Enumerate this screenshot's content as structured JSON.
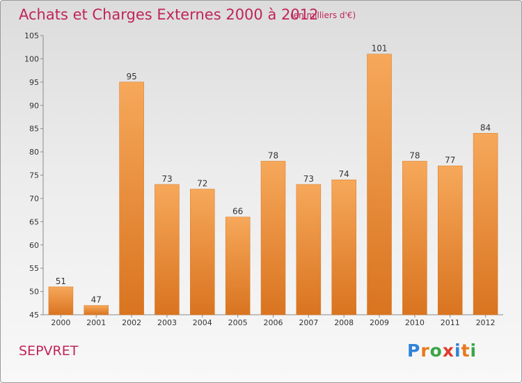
{
  "title": "Achats et Charges Externes 2000 à 2012",
  "unit_note": "(en milliers d'€)",
  "commune": "SEPVRET",
  "logo": {
    "letters": [
      "P",
      "r",
      "o",
      "x",
      "i",
      "t",
      "i"
    ],
    "colors": [
      "#2f83d6",
      "#e8791b",
      "#3aa646",
      "#e23a2c",
      "#2f83d6",
      "#e8791b",
      "#3aa646"
    ]
  },
  "colors": {
    "bar_light": "#f6a85a",
    "bar_dark": "#d97420",
    "axis": "#8a8a8a",
    "title": "#c0245a"
  },
  "chart_data": {
    "type": "bar",
    "categories": [
      "2000",
      "2001",
      "2002",
      "2003",
      "2004",
      "2005",
      "2006",
      "2007",
      "2008",
      "2009",
      "2010",
      "2011",
      "2012"
    ],
    "values": [
      51,
      47,
      95,
      73,
      72,
      66,
      78,
      73,
      74,
      101,
      78,
      77,
      84
    ],
    "title": "Achats et Charges Externes 2000 à 2012",
    "subtitle": "(en milliers d'€)",
    "ylim": [
      45,
      105
    ],
    "yticks": [
      45,
      50,
      55,
      60,
      65,
      70,
      75,
      80,
      85,
      90,
      95,
      100,
      105
    ],
    "grid": false,
    "data_labels": true
  }
}
